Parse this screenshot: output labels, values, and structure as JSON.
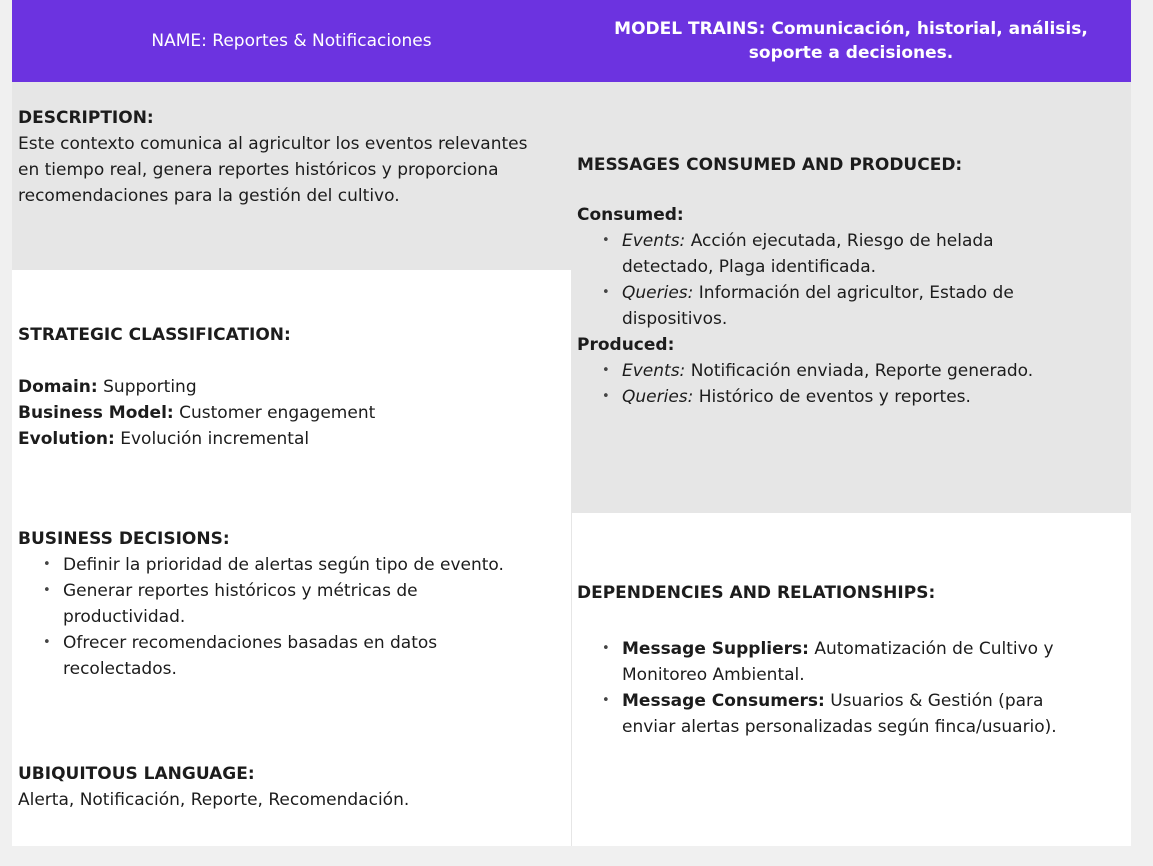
{
  "header": {
    "name": "NAME: Reportes & Notificaciones",
    "model_trains": "MODEL TRAINS: Comunicación, historial, análisis, soporte a decisiones."
  },
  "description": {
    "title": "DESCRIPTION:",
    "text": "Este contexto comunica al agricultor los eventos relevantes en tiempo real, genera reportes históricos y proporciona recomendaciones para la gestión del cultivo."
  },
  "strategic": {
    "title": "STRATEGIC CLASSIFICATION:",
    "domain_label": "Domain:",
    "domain_value": " Supporting",
    "business_label": "Business Model:",
    "business_value": " Customer engagement",
    "evolution_label": "Evolution:",
    "evolution_value": " Evolución incremental"
  },
  "business_decisions": {
    "title": "BUSINESS DECISIONS:",
    "items": [
      "Definir la prioridad de alertas según tipo de evento.",
      "Generar reportes históricos y métricas de productividad.",
      "Ofrecer recomendaciones basadas en datos recolectados."
    ]
  },
  "ubiquitous": {
    "title": "UBIQUITOUS LANGUAGE:",
    "text": "Alerta, Notificación, Reporte, Recomendación."
  },
  "messages": {
    "title": "MESSAGES CONSUMED AND PRODUCED:",
    "consumed_title": "Consumed:",
    "consumed": [
      {
        "label": "Events:",
        "text": " Acción ejecutada, Riesgo de helada detectado, Plaga identificada."
      },
      {
        "label": "Queries:",
        "text": " Información del agricultor, Estado de dispositivos."
      }
    ],
    "produced_title": "Produced:",
    "produced": [
      {
        "label": "Events:",
        "text": " Notificación enviada, Reporte generado."
      },
      {
        "label": "Queries:",
        "text": " Histórico de eventos y reportes."
      }
    ]
  },
  "dependencies": {
    "title": "DEPENDENCIES AND RELATIONSHIPS:",
    "items": [
      {
        "label": "Message Suppliers:",
        "text": " Automatización de Cultivo y Monitoreo Ambiental."
      },
      {
        "label": "Message Consumers:",
        "text": " Usuarios & Gestión (para enviar alertas personalizadas según finca/usuario)."
      }
    ]
  }
}
